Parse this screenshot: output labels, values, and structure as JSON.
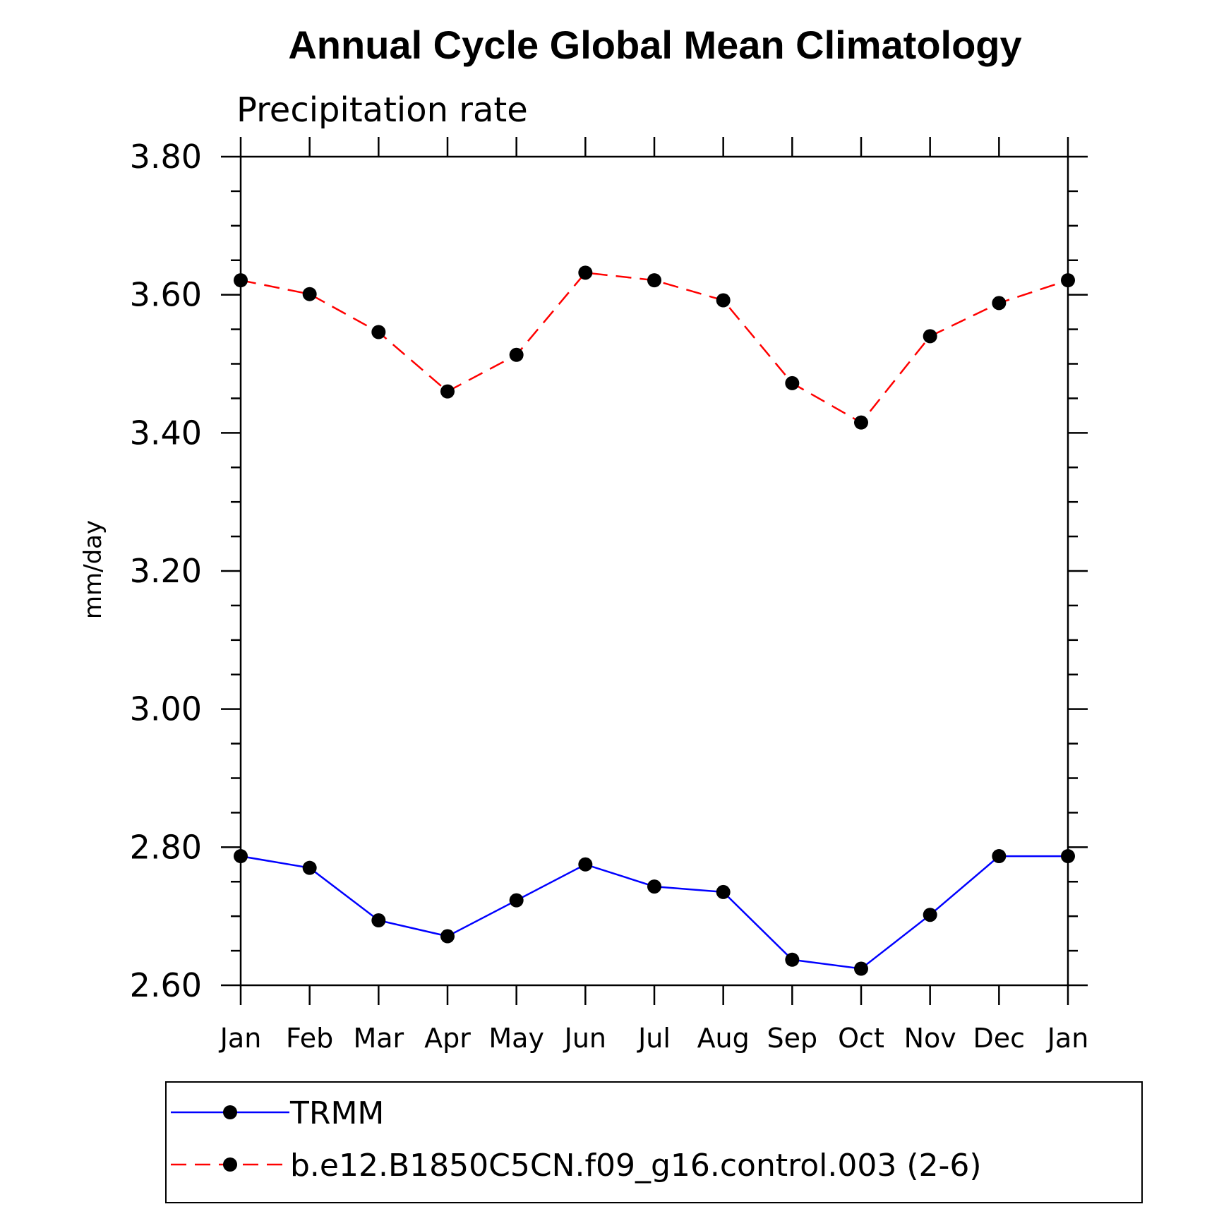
{
  "chart_data": {
    "type": "line",
    "title": "Annual Cycle Global Mean Climatology",
    "subtitle": "Precipitation rate",
    "xlabel": "",
    "ylabel": "mm/day",
    "categories": [
      "Jan",
      "Feb",
      "Mar",
      "Apr",
      "May",
      "Jun",
      "Jul",
      "Aug",
      "Sep",
      "Oct",
      "Nov",
      "Dec",
      "Jan"
    ],
    "ylim": [
      2.6,
      3.8
    ],
    "yticks": [
      "2.60",
      "2.80",
      "3.00",
      "3.20",
      "3.40",
      "3.60",
      "3.80"
    ],
    "grid": false,
    "legend_position": "bottom",
    "series": [
      {
        "name": "TRMM",
        "color": "#0000ff",
        "line_style": "solid",
        "marker": "filled-circle",
        "marker_color": "#000000",
        "values": [
          2.787,
          2.77,
          2.694,
          2.671,
          2.723,
          2.775,
          2.743,
          2.735,
          2.637,
          2.624,
          2.702,
          2.787,
          2.787
        ]
      },
      {
        "name": "b.e12.B1850C5CN.f09_g16.control.003 (2-6)",
        "color": "#ff0000",
        "line_style": "dashed",
        "marker": "filled-circle",
        "marker_color": "#000000",
        "values": [
          3.621,
          3.601,
          3.546,
          3.46,
          3.513,
          3.632,
          3.621,
          3.592,
          3.472,
          3.415,
          3.54,
          3.588,
          3.621
        ]
      }
    ]
  }
}
